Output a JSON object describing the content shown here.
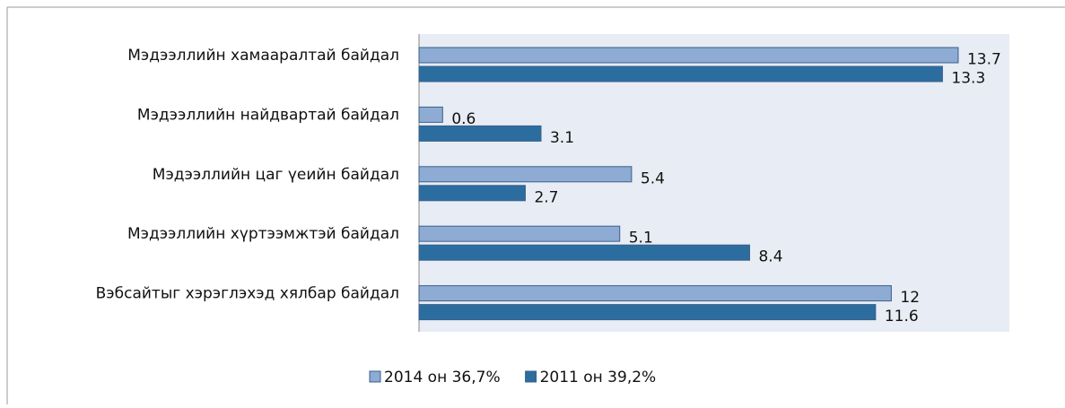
{
  "chart_data": {
    "type": "bar",
    "orientation": "horizontal",
    "categories": [
      "Мэдээллийн хамааралтай байдал",
      "Мэдээллийн найдвартай байдал",
      "Мэдээллийн цаг үеийн байдал",
      "Мэдээллийн хүртээмжтэй байдал",
      "Вэбсайтыг хэрэглэхэд хялбар байдал"
    ],
    "series": [
      {
        "name": "2014 он 36,7%",
        "color": "#8eabd3",
        "values": [
          13.7,
          0.6,
          5.4,
          5.1,
          12
        ]
      },
      {
        "name": "2011 он 39,2%",
        "color": "#2c6da0",
        "values": [
          13.3,
          3.1,
          2.7,
          8.4,
          11.6
        ]
      }
    ],
    "xlim": [
      0,
      15
    ],
    "legend": "bottom"
  }
}
